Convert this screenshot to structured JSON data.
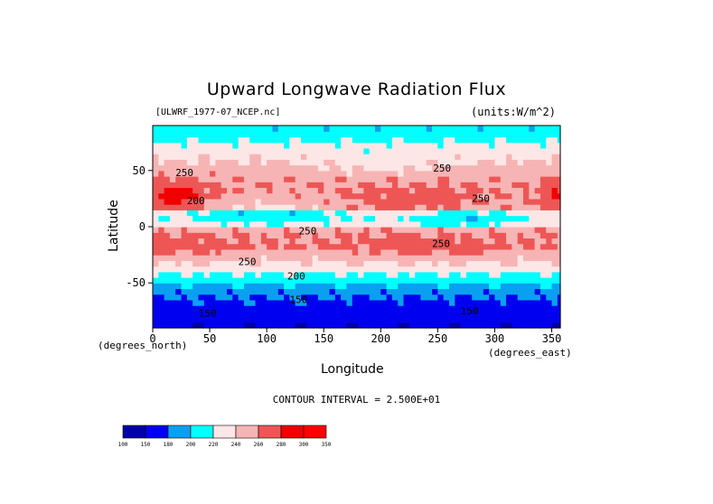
{
  "chart_data": {
    "type": "heatmap",
    "title": "Upward Longwave Radiation Flux",
    "subtitle_left": "[ULWRF_1977-07_NCEP.nc]",
    "subtitle_right": "(units:W/m^2)",
    "xlabel": "Longitude",
    "ylabel": "Latitude",
    "x_unit_label": "(degrees_east)",
    "y_unit_label": "(degrees_north)",
    "xlim": [
      0,
      357.5
    ],
    "ylim": [
      -90,
      90
    ],
    "x_ticks": [
      0,
      50,
      100,
      150,
      200,
      250,
      300,
      350
    ],
    "y_ticks": [
      -50,
      0,
      50
    ],
    "contour_interval_text": "CONTOUR INTERVAL = 2.500E+01",
    "contour_labels": [
      {
        "text": "250",
        "x": 246,
        "y": 49
      },
      {
        "text": "250",
        "x": 20,
        "y": 45
      },
      {
        "text": "200",
        "x": 30,
        "y": 20
      },
      {
        "text": "250",
        "x": 280,
        "y": 22
      },
      {
        "text": "250",
        "x": 128,
        "y": -7
      },
      {
        "text": "250",
        "x": 245,
        "y": -18
      },
      {
        "text": "250",
        "x": 75,
        "y": -34
      },
      {
        "text": "200",
        "x": 118,
        "y": -47
      },
      {
        "text": "150",
        "x": 120,
        "y": -68
      },
      {
        "text": "150",
        "x": 40,
        "y": -80
      },
      {
        "text": "150",
        "x": 270,
        "y": -78
      }
    ],
    "colorbar": {
      "boundaries": [
        100,
        150,
        180,
        200,
        220,
        240,
        260,
        280,
        300,
        350
      ],
      "boundary_labels": [
        "100",
        "150",
        "180",
        "200",
        "220",
        "240",
        "260",
        "280",
        "300",
        "350"
      ],
      "colors": [
        "#0000a8",
        "#0000f0",
        "#0aa0f0",
        "#00ffff",
        "#fde6e6",
        "#f7b4b4",
        "#ee5656",
        "#f00000",
        "#ff0000"
      ]
    }
  }
}
